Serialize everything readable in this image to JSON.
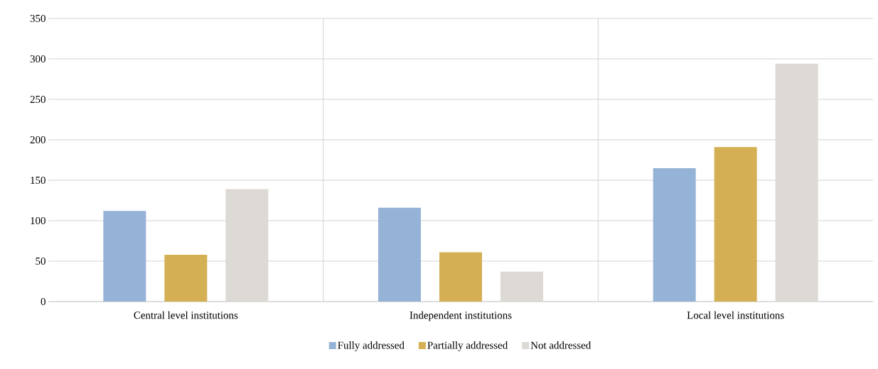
{
  "chart_data": {
    "type": "bar",
    "categories": [
      "Central level institutions",
      "Independent institutions",
      "Local level institutions"
    ],
    "series": [
      {
        "name": "Fully addressed",
        "color": "#95b3d7",
        "values": [
          112,
          116,
          165
        ]
      },
      {
        "name": "Partially addressed",
        "color": "#d4af54",
        "values": [
          58,
          61,
          191
        ]
      },
      {
        "name": "Not addressed",
        "color": "#ddd9d4",
        "values": [
          139,
          37,
          294
        ]
      }
    ],
    "ylim": [
      0,
      350
    ],
    "yticks": [
      0,
      50,
      100,
      150,
      200,
      250,
      300,
      350
    ],
    "grid": true,
    "legend": "bottom"
  }
}
